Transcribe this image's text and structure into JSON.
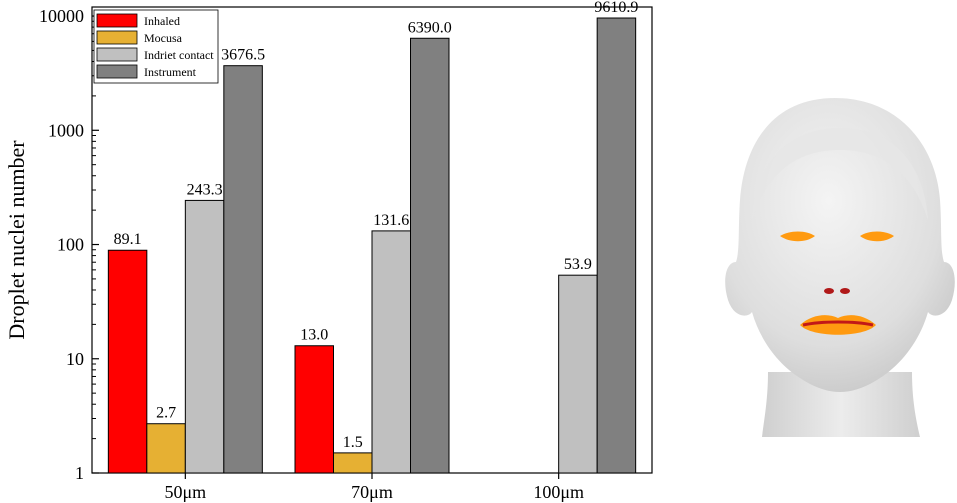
{
  "chart_data": {
    "type": "bar",
    "scale": "log",
    "ylim": [
      1,
      12000
    ],
    "yticks": [
      "1",
      "10",
      "100",
      "1000",
      "10000"
    ],
    "ylabel": "Droplet nuclei number",
    "xlabel": "",
    "categories": [
      "50μm",
      "70μm",
      "100μm"
    ],
    "series": [
      {
        "name": "Inhaled",
        "color": "#ff0000",
        "values": [
          89.1,
          13.0,
          null
        ],
        "labels": [
          "89.1",
          "13.0",
          ""
        ]
      },
      {
        "name": "Mocusa",
        "color": "#e6b033",
        "values": [
          2.7,
          1.5,
          null
        ],
        "labels": [
          "2.7",
          "1.5",
          ""
        ]
      },
      {
        "name": "Indriet contact",
        "color": "#c0c0c0",
        "values": [
          243.3,
          131.6,
          53.9
        ],
        "labels": [
          "243.3",
          "131.6",
          "53.9"
        ]
      },
      {
        "name": "Instrument",
        "color": "#808080",
        "values": [
          3676.5,
          6390.0,
          9610.9
        ],
        "labels": [
          "3676.5",
          "6390.0",
          "9610.9"
        ]
      }
    ],
    "legend_position": "top-left",
    "grid": false
  },
  "illustration": {
    "icon": "head-model-icon",
    "colors": {
      "face": "#ebebeb",
      "deposit": "#ff9a10",
      "nostril": "#b01818",
      "lip_line": "#c21818"
    }
  }
}
